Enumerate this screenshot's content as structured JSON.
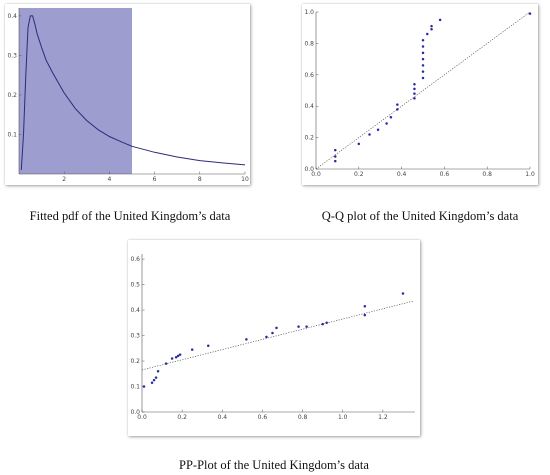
{
  "captions": {
    "pdf": "Fitted pdf of the United Kingdom’s data",
    "qq": "Q-Q plot of the United Kingdom’s data",
    "pp": "PP-Plot of the United Kingdom’s data"
  },
  "chart_data": [
    {
      "id": "pdf",
      "type": "area",
      "xlim": [
        0,
        10
      ],
      "ylim": [
        0,
        0.42
      ],
      "xticks": [
        2,
        4,
        6,
        8,
        10
      ],
      "yticks": [
        0.1,
        0.2,
        0.3,
        0.4
      ],
      "shade_range": [
        0,
        5
      ],
      "shade_color": "#9d9dcf",
      "line_color": "#2b2b7a",
      "curve": [
        [
          0.1,
          0.01
        ],
        [
          0.2,
          0.1
        ],
        [
          0.3,
          0.25
        ],
        [
          0.4,
          0.37
        ],
        [
          0.5,
          0.4
        ],
        [
          0.6,
          0.4
        ],
        [
          0.7,
          0.38
        ],
        [
          0.8,
          0.355
        ],
        [
          1.0,
          0.32
        ],
        [
          1.2,
          0.288
        ],
        [
          1.5,
          0.255
        ],
        [
          2.0,
          0.205
        ],
        [
          2.5,
          0.165
        ],
        [
          3.0,
          0.135
        ],
        [
          3.5,
          0.112
        ],
        [
          4.0,
          0.095
        ],
        [
          4.5,
          0.082
        ],
        [
          5.0,
          0.07
        ],
        [
          6.0,
          0.055
        ],
        [
          7.0,
          0.043
        ],
        [
          8.0,
          0.034
        ],
        [
          9.0,
          0.028
        ],
        [
          10.0,
          0.023
        ]
      ]
    },
    {
      "id": "qq",
      "type": "scatter",
      "xlim": [
        0,
        1
      ],
      "ylim": [
        0,
        1
      ],
      "xticks": [
        0.0,
        0.2,
        0.4,
        0.6,
        0.8,
        1.0
      ],
      "yticks": [
        0.0,
        0.2,
        0.4,
        0.6,
        0.8,
        1.0
      ],
      "point_color": "#2a2aa0",
      "reference_line": [
        [
          0,
          0
        ],
        [
          1,
          1
        ]
      ],
      "points": [
        [
          0.09,
          0.05
        ],
        [
          0.09,
          0.08
        ],
        [
          0.09,
          0.12
        ],
        [
          0.2,
          0.16
        ],
        [
          0.25,
          0.22
        ],
        [
          0.29,
          0.25
        ],
        [
          0.33,
          0.29
        ],
        [
          0.35,
          0.33
        ],
        [
          0.38,
          0.38
        ],
        [
          0.38,
          0.41
        ],
        [
          0.46,
          0.45
        ],
        [
          0.46,
          0.48
        ],
        [
          0.46,
          0.51
        ],
        [
          0.46,
          0.54
        ],
        [
          0.5,
          0.58
        ],
        [
          0.5,
          0.62
        ],
        [
          0.5,
          0.66
        ],
        [
          0.5,
          0.7
        ],
        [
          0.5,
          0.74
        ],
        [
          0.5,
          0.78
        ],
        [
          0.5,
          0.82
        ],
        [
          0.52,
          0.86
        ],
        [
          0.54,
          0.89
        ],
        [
          0.54,
          0.91
        ],
        [
          0.58,
          0.95
        ],
        [
          1.0,
          0.99
        ]
      ]
    },
    {
      "id": "pp",
      "type": "scatter",
      "xlim": [
        0,
        1.36
      ],
      "ylim": [
        0,
        0.62
      ],
      "xticks": [
        0.0,
        0.2,
        0.4,
        0.6,
        0.8,
        1.0,
        1.2
      ],
      "yticks": [
        0.0,
        0.1,
        0.2,
        0.3,
        0.4,
        0.5,
        0.6
      ],
      "point_color": "#2a2aa0",
      "reference_line": [
        [
          0,
          0.165
        ],
        [
          1.35,
          0.435
        ]
      ],
      "points": [
        [
          0.01,
          0.1
        ],
        [
          0.05,
          0.115
        ],
        [
          0.06,
          0.125
        ],
        [
          0.07,
          0.135
        ],
        [
          0.08,
          0.16
        ],
        [
          0.12,
          0.19
        ],
        [
          0.15,
          0.21
        ],
        [
          0.17,
          0.215
        ],
        [
          0.18,
          0.22
        ],
        [
          0.19,
          0.225
        ],
        [
          0.25,
          0.245
        ],
        [
          0.33,
          0.26
        ],
        [
          0.52,
          0.285
        ],
        [
          0.62,
          0.295
        ],
        [
          0.65,
          0.31
        ],
        [
          0.67,
          0.33
        ],
        [
          0.78,
          0.335
        ],
        [
          0.82,
          0.335
        ],
        [
          0.9,
          0.345
        ],
        [
          0.92,
          0.35
        ],
        [
          1.11,
          0.38
        ],
        [
          1.11,
          0.415
        ],
        [
          1.3,
          0.465
        ]
      ]
    }
  ]
}
